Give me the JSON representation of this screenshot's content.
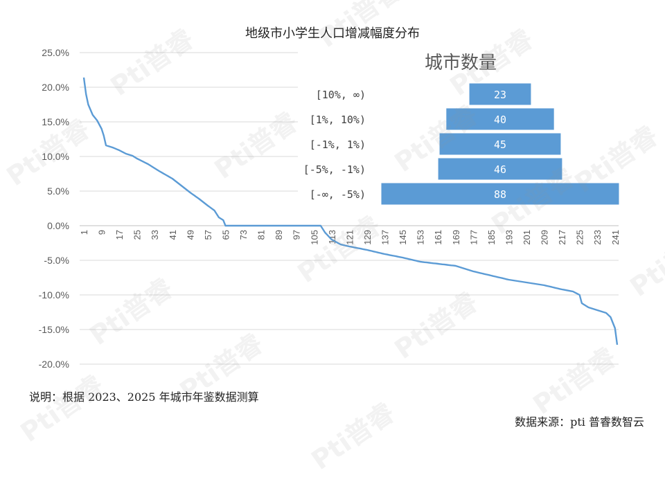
{
  "page": {
    "title": "地级市小学生人口增减幅度分布",
    "note": "说明：根据 2023、2025 年城市年鉴数据测算",
    "source": "数据来源：pti 普睿数智云",
    "watermark": "Pti普睿"
  },
  "colors": {
    "line": "#5B9BD5",
    "bar": "#5B9BD5",
    "bar_border": "#2E75B6",
    "grid": "#d9d9d9",
    "axis_text": "#595959"
  },
  "chart_data": [
    {
      "type": "line",
      "title": "地级市小学生人口增减幅度分布",
      "xlabel": "",
      "ylabel": "",
      "x_ticks": [
        "1",
        "9",
        "17",
        "25",
        "33",
        "41",
        "49",
        "57",
        "65",
        "73",
        "81",
        "89",
        "97",
        "105",
        "113",
        "121",
        "129",
        "137",
        "145",
        "153",
        "161",
        "169",
        "177",
        "185",
        "193",
        "201",
        "209",
        "217",
        "225",
        "233",
        "241"
      ],
      "ylim": [
        -0.2,
        0.25
      ],
      "y_ticks": [
        "25.0%",
        "20.0%",
        "15.0%",
        "10.0%",
        "5.0%",
        "0.0%",
        "-5.0%",
        "-10.0%",
        "-15.0%",
        "-20.0%"
      ],
      "y_tick_values": [
        0.25,
        0.2,
        0.15,
        0.1,
        0.05,
        0.0,
        -0.05,
        -0.1,
        -0.15,
        -0.2
      ],
      "grid": "horizontal",
      "n_points": 242,
      "series": [
        {
          "anchors": [
            [
              1,
              0.214
            ],
            [
              2,
              0.19
            ],
            [
              3,
              0.175
            ],
            [
              5,
              0.16
            ],
            [
              7,
              0.152
            ],
            [
              9,
              0.14
            ],
            [
              10,
              0.13
            ],
            [
              11,
              0.116
            ],
            [
              14,
              0.113
            ],
            [
              17,
              0.109
            ],
            [
              20,
              0.104
            ],
            [
              23,
              0.101
            ],
            [
              25,
              0.097
            ],
            [
              30,
              0.089
            ],
            [
              35,
              0.079
            ],
            [
              41,
              0.068
            ],
            [
              45,
              0.058
            ],
            [
              49,
              0.048
            ],
            [
              53,
              0.039
            ],
            [
              57,
              0.029
            ],
            [
              60,
              0.022
            ],
            [
              62,
              0.012
            ],
            [
              64,
              0.008
            ],
            [
              65,
              0.0
            ],
            [
              108,
              0.0
            ],
            [
              110,
              -0.01
            ],
            [
              113,
              -0.02
            ],
            [
              117,
              -0.027
            ],
            [
              121,
              -0.03
            ],
            [
              129,
              -0.035
            ],
            [
              137,
              -0.041
            ],
            [
              145,
              -0.046
            ],
            [
              153,
              -0.052
            ],
            [
              161,
              -0.055
            ],
            [
              169,
              -0.058
            ],
            [
              177,
              -0.066
            ],
            [
              185,
              -0.072
            ],
            [
              193,
              -0.078
            ],
            [
              201,
              -0.082
            ],
            [
              209,
              -0.086
            ],
            [
              217,
              -0.092
            ],
            [
              222,
              -0.095
            ],
            [
              225,
              -0.1
            ],
            [
              226,
              -0.112
            ],
            [
              229,
              -0.118
            ],
            [
              233,
              -0.122
            ],
            [
              237,
              -0.126
            ],
            [
              239,
              -0.132
            ],
            [
              241,
              -0.148
            ],
            [
              242,
              -0.172
            ]
          ]
        }
      ]
    },
    {
      "type": "bar",
      "title": "城市数量",
      "orientation": "horizontal-centered",
      "categories": [
        "[10%, ∞)",
        "[1%, 10%)",
        "[-1%, 1%)",
        "[-5%, -1%)",
        "[-∞, -5%)"
      ],
      "values": [
        23,
        40,
        45,
        46,
        88
      ],
      "value_labels": [
        "23",
        "40",
        "45",
        "46",
        "88"
      ]
    }
  ]
}
